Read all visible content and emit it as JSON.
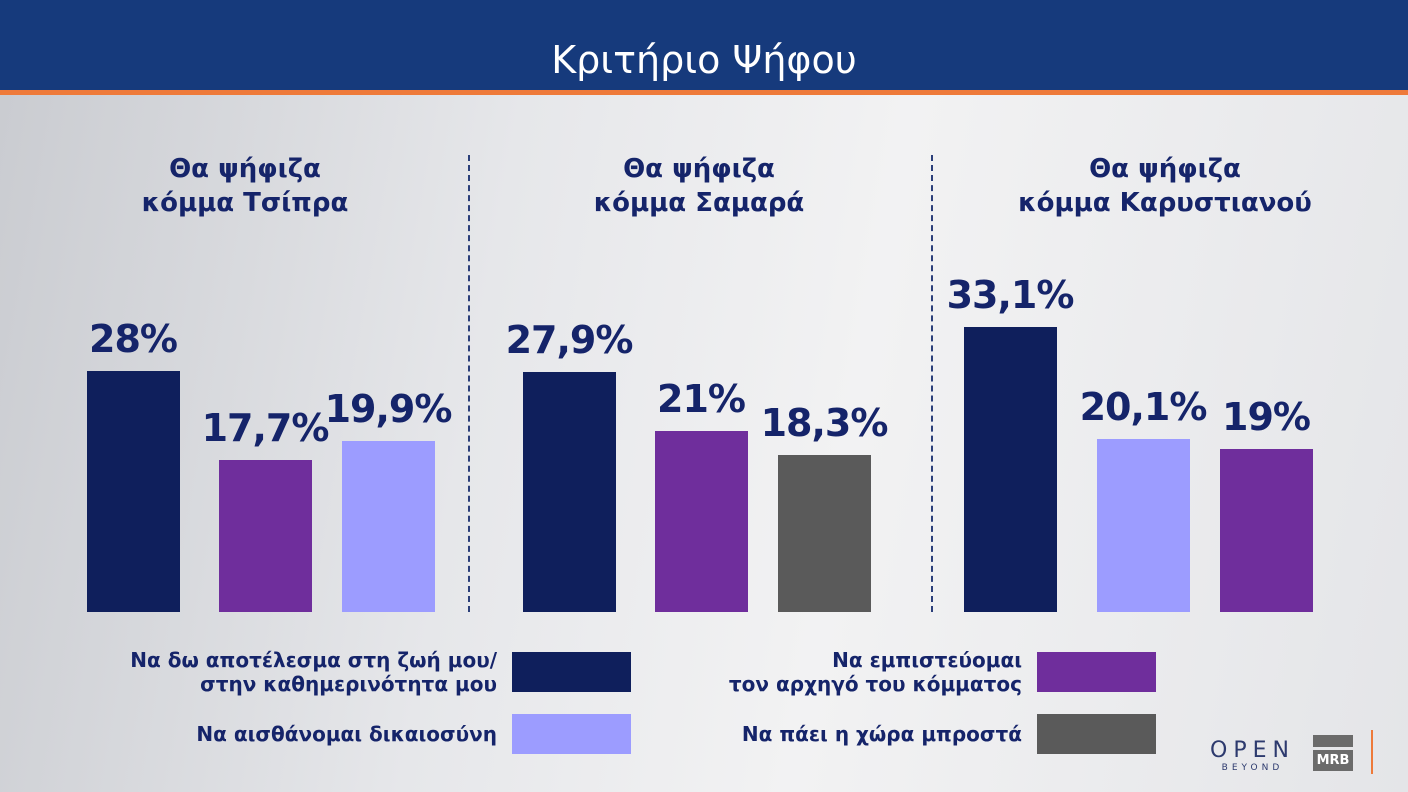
{
  "header": {
    "title": "Κριτήριο Ψήφου"
  },
  "colors": {
    "header_bg": "#163a7c",
    "accent_line": "#ee7a3a"
  },
  "chart_data": {
    "type": "bar",
    "title": "Κριτήριο Ψήφου",
    "ylim": [
      0,
      35
    ],
    "grid": false,
    "legend_placement": "bottom",
    "legend": [
      {
        "name": "Να δω αποτέλεσμα στη ζωή μου/ στην καθημερινότητα μου",
        "line1": "Να δω αποτέλεσμα στη ζωή μου/",
        "line2": "στην καθημερινότητα μου",
        "color": "#0f1f5c"
      },
      {
        "name": "Να εμπιστεύομαι τον αρχηγό του κόμματος",
        "line1": "Να εμπιστεύομαι",
        "line2": "τον αρχηγό του κόμματος",
        "color": "#6f2e9c"
      },
      {
        "name": "Να αισθάνομαι δικαιοσύνη",
        "line1": "Να αισθάνομαι δικαιοσύνη",
        "line2": "",
        "color": "#9c9cff"
      },
      {
        "name": "Να πάει η χώρα μπροστά",
        "line1": "Να πάει η χώρα μπροστά",
        "line2": "",
        "color": "#5a5a5a"
      }
    ],
    "groups": [
      {
        "title_line1": "Θα ψήφιζα",
        "title_line2": "κόμμα Τσίπρα",
        "bars": [
          {
            "series": "Να δω αποτέλεσμα στη ζωή μου/ στην καθημερινότητα μου",
            "value": 28,
            "label": "28%",
            "color": "#0f1f5c"
          },
          {
            "series": "Να εμπιστεύομαι τον αρχηγό του κόμματος",
            "value": 17.7,
            "label": "17,7%",
            "color": "#6f2e9c"
          },
          {
            "series": "Να αισθάνομαι δικαιοσύνη",
            "value": 19.9,
            "label": "19,9%",
            "color": "#9c9cff"
          }
        ]
      },
      {
        "title_line1": "Θα ψήφιζα",
        "title_line2": "κόμμα Σαμαρά",
        "bars": [
          {
            "series": "Να δω αποτέλεσμα στη ζωή μου/ στην καθημερινότητα μου",
            "value": 27.9,
            "label": "27,9%",
            "color": "#0f1f5c"
          },
          {
            "series": "Να εμπιστεύομαι τον αρχηγό του κόμματος",
            "value": 21,
            "label": "21%",
            "color": "#6f2e9c"
          },
          {
            "series": "Να πάει η χώρα μπροστά",
            "value": 18.3,
            "label": "18,3%",
            "color": "#5a5a5a"
          }
        ]
      },
      {
        "title_line1": "Θα ψήφιζα",
        "title_line2": "κόμμα Καρυστιανού",
        "bars": [
          {
            "series": "Να δω αποτέλεσμα στη ζωή μου/ στην καθημερινότητα μου",
            "value": 33.1,
            "label": "33,1%",
            "color": "#0f1f5c"
          },
          {
            "series": "Να αισθάνομαι δικαιοσύνη",
            "value": 20.1,
            "label": "20,1%",
            "color": "#9c9cff"
          },
          {
            "series": "Να εμπιστεύομαι τον αρχηγό του κόμματος",
            "value": 19,
            "label": "19%",
            "color": "#6f2e9c"
          }
        ]
      }
    ]
  },
  "logos": {
    "open": "OPEN",
    "open_sub": "BEYOND",
    "mrb": "MRB"
  }
}
